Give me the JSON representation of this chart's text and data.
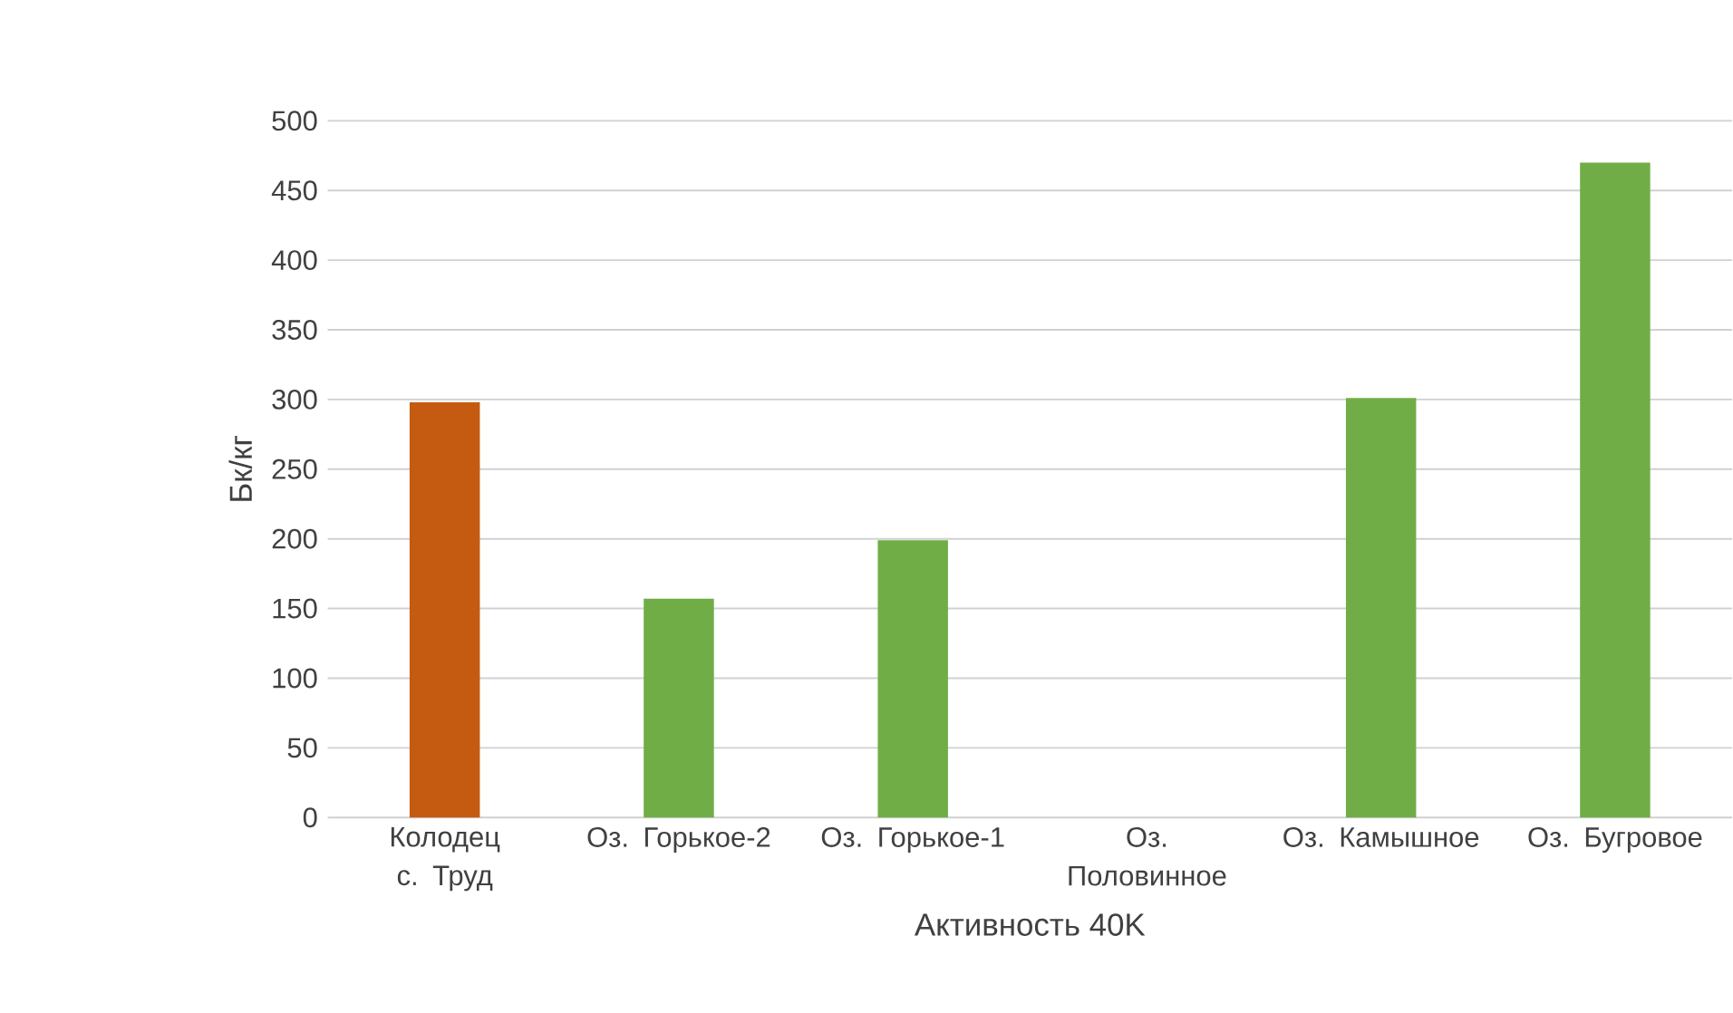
{
  "chart_data": {
    "type": "bar",
    "xlabel": "Активность 40K",
    "ylabel": "Бк/кг",
    "categories": [
      "Колодец с. Труд",
      "Оз. Горькое-2",
      "Оз. Горькое-1",
      "Оз. Половинное",
      "Оз. Камышное",
      "Оз. Бугровое"
    ],
    "values": [
      298,
      157,
      199,
      null,
      301,
      470
    ],
    "colors": [
      "#c55a11",
      "#70ad47",
      "#70ad47",
      "#70ad47",
      "#70ad47",
      "#70ad47"
    ],
    "ylim": [
      0,
      500
    ],
    "yticks": [
      0,
      50,
      100,
      150,
      200,
      250,
      300,
      350,
      400,
      450,
      500
    ],
    "grid": "y"
  }
}
